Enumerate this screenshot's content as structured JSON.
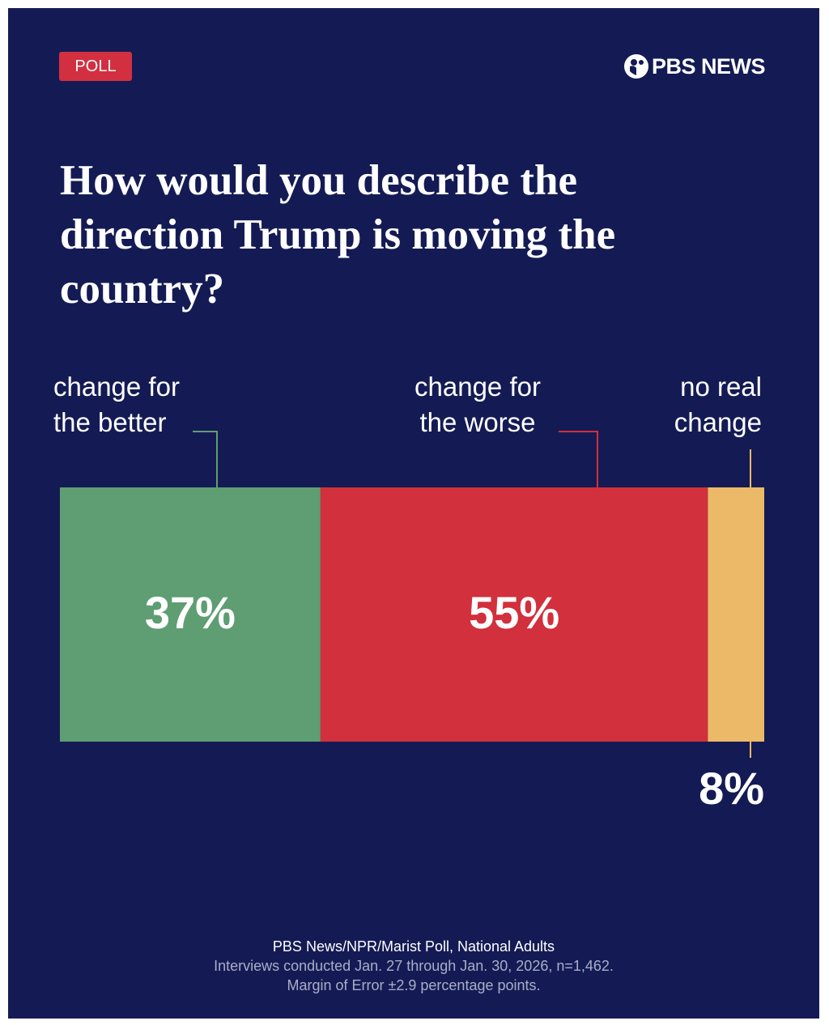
{
  "chart_data": {
    "type": "stacked-bar",
    "badge": "POLL",
    "logo": "PBS NEWS",
    "title": "How would you describe the direction Trump is moving the country?",
    "series": [
      {
        "name": "change for the better",
        "color": "#5e9e72",
        "values": [
          37
        ],
        "value_labels": [
          "37%"
        ]
      },
      {
        "name": "change for the worse",
        "color": "#d1303c",
        "values": [
          55
        ],
        "value_labels": [
          "55%"
        ]
      },
      {
        "name": "no real change",
        "color": "#ecb968",
        "values": [
          8
        ],
        "value_labels": [
          "8%"
        ]
      }
    ],
    "source": "PBS News/NPR/Marist Poll, National Adults",
    "notes": [
      "Interviews conducted Jan. 27 through Jan. 30, 2026, n=1,462.",
      "Margin of Error ±2.9 percentage points."
    ]
  }
}
